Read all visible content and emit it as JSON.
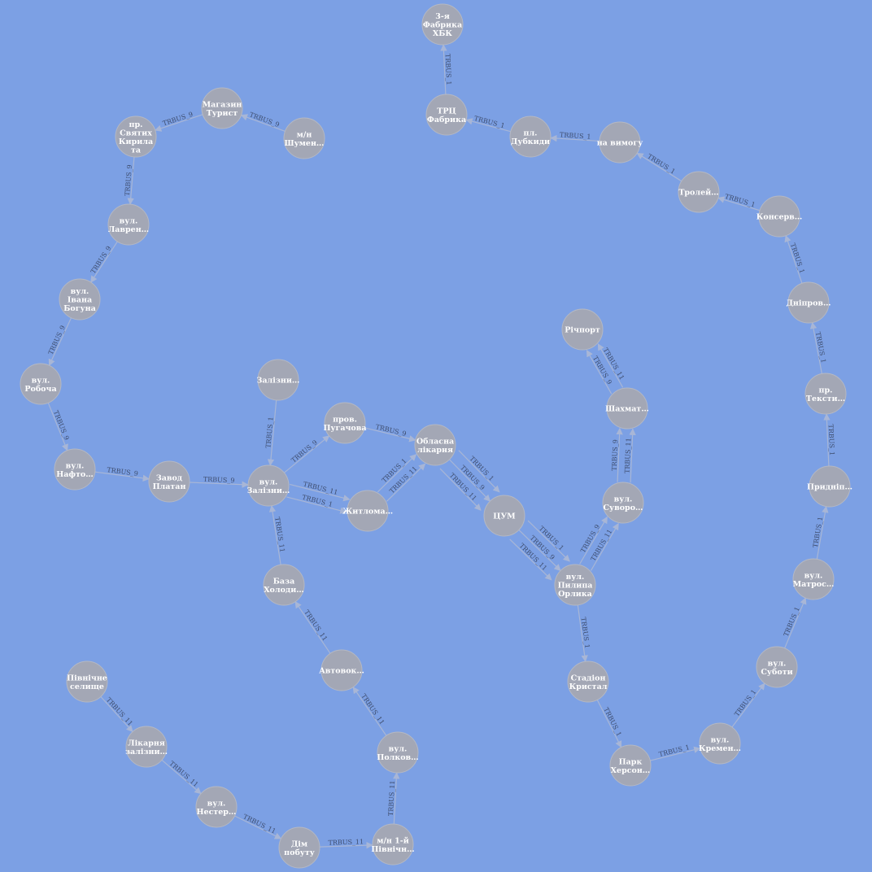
{
  "graph": {
    "nodes": [
      {
        "id": "fabryka_hbk",
        "lines": [
          "3-я",
          "Фабрика",
          "ХБК"
        ]
      },
      {
        "id": "trc_fabryka",
        "lines": [
          "ТРЦ",
          "Фабрика"
        ]
      },
      {
        "id": "pl_dubky",
        "lines": [
          "пл.",
          "Дубкиди"
        ]
      },
      {
        "id": "na_vymogu",
        "lines": [
          "на вимогу"
        ]
      },
      {
        "id": "troley",
        "lines": [
          "Тролей…"
        ]
      },
      {
        "id": "konserv",
        "lines": [
          "Консерв…"
        ]
      },
      {
        "id": "dniprov",
        "lines": [
          "Дніпров…"
        ]
      },
      {
        "id": "pr_tekst",
        "lines": [
          "пр.",
          "Тексти…"
        ]
      },
      {
        "id": "prydnip",
        "lines": [
          "Придніп…"
        ]
      },
      {
        "id": "vul_matros",
        "lines": [
          "вул.",
          "Матрос…"
        ]
      },
      {
        "id": "vul_suboty",
        "lines": [
          "вул.",
          "Суботи"
        ]
      },
      {
        "id": "vul_kremen",
        "lines": [
          "вул.",
          "Кремен…"
        ]
      },
      {
        "id": "park_kherson",
        "lines": [
          "Парк",
          "Херсон…"
        ]
      },
      {
        "id": "stadion",
        "lines": [
          "Стадіон",
          "Кристал"
        ]
      },
      {
        "id": "vul_orlyka",
        "lines": [
          "вул.",
          "Пилипа",
          "Орлика"
        ]
      },
      {
        "id": "tsum",
        "lines": [
          "ЦУМ"
        ]
      },
      {
        "id": "vul_suvoro",
        "lines": [
          "вул.",
          "Суворо…"
        ]
      },
      {
        "id": "shakhmat",
        "lines": [
          "Шахмат…"
        ]
      },
      {
        "id": "richport",
        "lines": [
          "Річпорт"
        ]
      },
      {
        "id": "oblasna",
        "lines": [
          "Обласна",
          "лікарня"
        ]
      },
      {
        "id": "prov_pugach",
        "lines": [
          "пров.",
          "Пугачова"
        ]
      },
      {
        "id": "zhytlo",
        "lines": [
          "Житлома…"
        ]
      },
      {
        "id": "vul_zalizn",
        "lines": [
          "вул.",
          "Залізни…"
        ]
      },
      {
        "id": "zalizn_top",
        "lines": [
          "Залізни…"
        ]
      },
      {
        "id": "zavod_platan",
        "lines": [
          "Завод",
          "Платан"
        ]
      },
      {
        "id": "vul_nafto",
        "lines": [
          "вул.",
          "Нафто…"
        ]
      },
      {
        "id": "vul_robocha",
        "lines": [
          "вул.",
          "Робоча"
        ]
      },
      {
        "id": "vul_bogun",
        "lines": [
          "вул.",
          "Івана",
          "Богуна"
        ]
      },
      {
        "id": "vul_lavren",
        "lines": [
          "вул.",
          "Лаврен…"
        ]
      },
      {
        "id": "pr_kyryla",
        "lines": [
          "пр.",
          "Святих",
          "Кирила",
          "та"
        ]
      },
      {
        "id": "mag_turyst",
        "lines": [
          "Магазин",
          "Турист"
        ]
      },
      {
        "id": "mn_shumen",
        "lines": [
          "м/н",
          "Шумен…"
        ]
      },
      {
        "id": "baza_kholod",
        "lines": [
          "База",
          "Холоди…"
        ]
      },
      {
        "id": "avtovok",
        "lines": [
          "Автовок…"
        ]
      },
      {
        "id": "vul_polkov",
        "lines": [
          "вул.",
          "Полков…"
        ]
      },
      {
        "id": "mn_pivnich",
        "lines": [
          "м/н 1-й",
          "Північн…"
        ]
      },
      {
        "id": "dim_pobutu",
        "lines": [
          "Дім",
          "побуту"
        ]
      },
      {
        "id": "vul_nester",
        "lines": [
          "вул.",
          "Нестер…"
        ]
      },
      {
        "id": "likarnya_zal",
        "lines": [
          "Лікарня",
          "залізни…"
        ]
      },
      {
        "id": "pivnichne",
        "lines": [
          "Північне",
          "селище"
        ]
      }
    ],
    "edges": [
      {
        "from": "trc_fabryka",
        "to": "fabryka_hbk",
        "label": "TRBUS_1"
      },
      {
        "from": "pl_dubky",
        "to": "trc_fabryka",
        "label": "TRBUS_1"
      },
      {
        "from": "na_vymogu",
        "to": "pl_dubky",
        "label": "TRBUS_1"
      },
      {
        "from": "troley",
        "to": "na_vymogu",
        "label": "TRBUS_1"
      },
      {
        "from": "konserv",
        "to": "troley",
        "label": "TRBUS_1"
      },
      {
        "from": "dniprov",
        "to": "konserv",
        "label": "TRBUS_1"
      },
      {
        "from": "pr_tekst",
        "to": "dniprov",
        "label": "TRBUS_1"
      },
      {
        "from": "prydnip",
        "to": "pr_tekst",
        "label": "TRBUS_1"
      },
      {
        "from": "vul_matros",
        "to": "prydnip",
        "label": "TRBUS_1"
      },
      {
        "from": "vul_suboty",
        "to": "vul_matros",
        "label": "TRBUS_1"
      },
      {
        "from": "vul_kremen",
        "to": "vul_suboty",
        "label": "TRBUS_1"
      },
      {
        "from": "park_kherson",
        "to": "vul_kremen",
        "label": "TRBUS_1"
      },
      {
        "from": "stadion",
        "to": "park_kherson",
        "label": "TRBUS_1"
      },
      {
        "from": "vul_orlyka",
        "to": "stadion",
        "label": "TRBUS_1"
      },
      {
        "from": "tsum",
        "to": "vul_orlyka",
        "label": "TRBUS_1"
      },
      {
        "from": "tsum",
        "to": "vul_orlyka",
        "label": "TRBUS_9"
      },
      {
        "from": "tsum",
        "to": "vul_orlyka",
        "label": "TRBUS_11"
      },
      {
        "from": "oblasna",
        "to": "tsum",
        "label": "TRBUS_1"
      },
      {
        "from": "oblasna",
        "to": "tsum",
        "label": "TRBUS_9"
      },
      {
        "from": "oblasna",
        "to": "tsum",
        "label": "TRBUS_11"
      },
      {
        "from": "vul_orlyka",
        "to": "vul_suvoro",
        "label": "TRBUS_9"
      },
      {
        "from": "vul_orlyka",
        "to": "vul_suvoro",
        "label": "TRBUS_11"
      },
      {
        "from": "vul_suvoro",
        "to": "shakhmat",
        "label": "TRBUS_11"
      },
      {
        "from": "vul_suvoro",
        "to": "shakhmat",
        "label": "TRBUS_9"
      },
      {
        "from": "shakhmat",
        "to": "richport",
        "label": "TRBUS_11"
      },
      {
        "from": "shakhmat",
        "to": "richport",
        "label": "TRBUS_9"
      },
      {
        "from": "prov_pugach",
        "to": "oblasna",
        "label": "TRBUS_9"
      },
      {
        "from": "zhytlo",
        "to": "oblasna",
        "label": "TRBUS_11"
      },
      {
        "from": "zhytlo",
        "to": "oblasna",
        "label": "TRBUS_1"
      },
      {
        "from": "vul_zalizn",
        "to": "prov_pugach",
        "label": "TRBUS_9"
      },
      {
        "from": "vul_zalizn",
        "to": "zhytlo",
        "label": "TRBUS_11"
      },
      {
        "from": "vul_zalizn",
        "to": "zhytlo",
        "label": "TRBUS_1"
      },
      {
        "from": "zalizn_top",
        "to": "vul_zalizn",
        "label": "TRBUS_1"
      },
      {
        "from": "zavod_platan",
        "to": "vul_zalizn",
        "label": "TRBUS_9"
      },
      {
        "from": "vul_nafto",
        "to": "zavod_platan",
        "label": "TRBUS_9"
      },
      {
        "from": "vul_robocha",
        "to": "vul_nafto",
        "label": "TRBUS_9"
      },
      {
        "from": "vul_bogun",
        "to": "vul_robocha",
        "label": "TRBUS_9"
      },
      {
        "from": "vul_lavren",
        "to": "vul_bogun",
        "label": "TRBUS_9"
      },
      {
        "from": "pr_kyryla",
        "to": "vul_lavren",
        "label": "TRBUS_9"
      },
      {
        "from": "mag_turyst",
        "to": "pr_kyryla",
        "label": "TRBUS_9"
      },
      {
        "from": "mn_shumen",
        "to": "mag_turyst",
        "label": "TRBUS_9"
      },
      {
        "from": "baza_kholod",
        "to": "vul_zalizn",
        "label": "TRBUS_11"
      },
      {
        "from": "avtovok",
        "to": "baza_kholod",
        "label": "TRBUS_11"
      },
      {
        "from": "vul_polkov",
        "to": "avtovok",
        "label": "TRBUS_11"
      },
      {
        "from": "mn_pivnich",
        "to": "vul_polkov",
        "label": "TRBUS_11"
      },
      {
        "from": "dim_pobutu",
        "to": "mn_pivnich",
        "label": "TRBUS_11"
      },
      {
        "from": "vul_nester",
        "to": "dim_pobutu",
        "label": "TRBUS_11"
      },
      {
        "from": "likarnya_zal",
        "to": "vul_nester",
        "label": "TRBUS_11"
      },
      {
        "from": "pivnichne",
        "to": "likarnya_zal",
        "label": "TRBUS_11"
      }
    ]
  },
  "colors": {
    "background": "#7ca0e4",
    "node_fill": "#a3a7b5",
    "node_text": "#ffffff",
    "edge": "#a8b6d6",
    "edge_label": "#3e4d6e"
  }
}
